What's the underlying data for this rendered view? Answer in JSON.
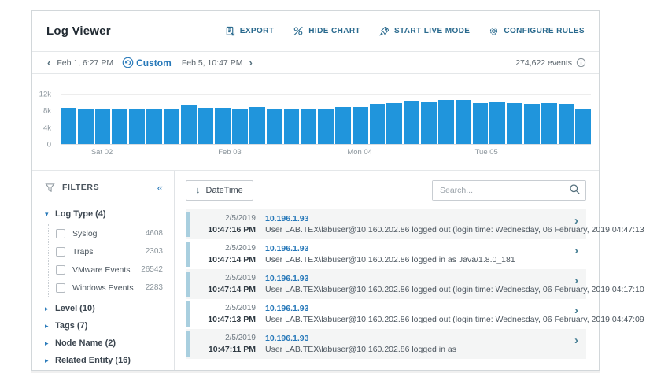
{
  "header": {
    "title": "Log Viewer",
    "actions": [
      {
        "label": "EXPORT"
      },
      {
        "label": "HIDE CHART"
      },
      {
        "label": "START LIVE MODE"
      },
      {
        "label": "CONFIGURE RULES"
      }
    ]
  },
  "timebar": {
    "start": "Feb 1, 6:27 PM",
    "mode": "Custom",
    "end": "Feb 5, 10:47 PM",
    "events": "274,622 events"
  },
  "chart_data": {
    "type": "bar",
    "title": "Events over time histogram",
    "bar_color": "#2095dc",
    "ylim": [
      0,
      12000
    ],
    "yticks": [
      "12k",
      "8k",
      "4k",
      "0"
    ],
    "xticks": [
      {
        "label": "Sat 02",
        "pos": 7.8
      },
      {
        "label": "Feb 03",
        "pos": 31.9
      },
      {
        "label": "Mon 04",
        "pos": 56.4
      },
      {
        "label": "Tue 05",
        "pos": 80.3
      }
    ],
    "values": [
      8800,
      8300,
      8400,
      8400,
      8500,
      8300,
      8400,
      9300,
      8800,
      8700,
      8600,
      8900,
      8400,
      8400,
      8500,
      8400,
      8900,
      9000,
      9800,
      10000,
      10400,
      10300,
      10600,
      10600,
      9900,
      10100,
      9900,
      9800,
      10000,
      9800,
      8500
    ],
    "grid": "top line only",
    "legend": "none"
  },
  "filters": {
    "title": "FILTERS",
    "collapse_glyph": "«",
    "groups": [
      {
        "label": "Log Type (4)",
        "expanded": true,
        "items": [
          {
            "label": "Syslog",
            "count": "4608"
          },
          {
            "label": "Traps",
            "count": "2303"
          },
          {
            "label": "VMware Events",
            "count": "26542"
          },
          {
            "label": "Windows Events",
            "count": "2283"
          }
        ]
      },
      {
        "label": "Level (10)",
        "expanded": false
      },
      {
        "label": "Tags (7)",
        "expanded": false
      },
      {
        "label": "Node Name (2)",
        "expanded": false
      },
      {
        "label": "Related Entity (16)",
        "expanded": false
      }
    ]
  },
  "table": {
    "sort_label": "DateTime",
    "search_placeholder": "Search...",
    "rows": [
      {
        "date": "2/5/2019",
        "time": "10:47:16 PM",
        "source": "10.196.1.93",
        "message": "User LAB.TEX\\labuser@10.160.202.86 logged out (login time: Wednesday, 06 February, 2019 04:47:13"
      },
      {
        "date": "2/5/2019",
        "time": "10:47:14 PM",
        "source": "10.196.1.93",
        "message": "User LAB.TEX\\labuser@10.160.202.86 logged in as Java/1.8.0_181"
      },
      {
        "date": "2/5/2019",
        "time": "10:47:14 PM",
        "source": "10.196.1.93",
        "message": "User LAB.TEX\\labuser@10.160.202.86 logged out (login time: Wednesday, 06 February, 2019 04:17:10"
      },
      {
        "date": "2/5/2019",
        "time": "10:47:13 PM",
        "source": "10.196.1.93",
        "message": "User LAB.TEX\\labuser@10.160.202.86 logged out (login time: Wednesday, 06 February, 2019 04:47:09"
      },
      {
        "date": "2/5/2019",
        "time": "10:47:11 PM",
        "source": "10.196.1.93",
        "message": "User LAB.TEX\\labuser@10.160.202.86 logged in as"
      }
    ]
  }
}
